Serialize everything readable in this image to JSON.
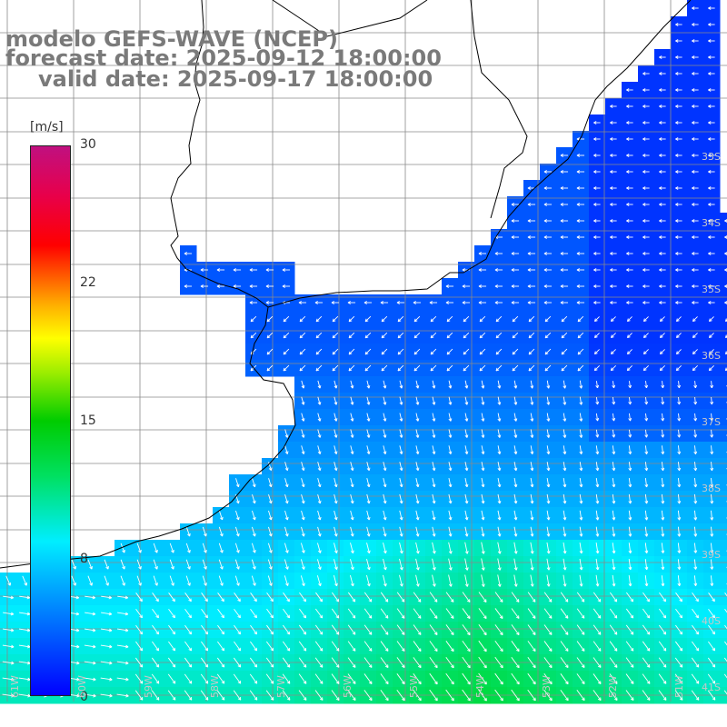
{
  "title": {
    "model": "modelo GEFS-WAVE (NCEP)",
    "forecast": "forecast date: 2025-09-12 18:00:00",
    "valid": "valid date: 2025-09-17 18:00:00"
  },
  "colorbar": {
    "unit": "[m/s]",
    "ticks": [
      "30",
      "22",
      "15",
      "8",
      "0"
    ],
    "tick_values": [
      30,
      22,
      15,
      8,
      0
    ],
    "min": 0,
    "max": 30,
    "colors": [
      "#0000ff",
      "#0090ff",
      "#00eeff",
      "#00e060",
      "#00cc00",
      "#a0ee00",
      "#ffff00",
      "#ffb000",
      "#ff6000",
      "#ff0000",
      "#e8004a",
      "#c01080"
    ]
  },
  "lat_labels": [
    "33S",
    "34S",
    "35S",
    "36S",
    "37S",
    "38S",
    "39S",
    "40S",
    "41S"
  ],
  "lon_labels": [
    "61W",
    "60W",
    "59W",
    "58W",
    "57W",
    "56W",
    "55W",
    "54W",
    "53W",
    "52W",
    "51W"
  ],
  "colors": {
    "land": "#ffffff",
    "grid": "#8a8a8a",
    "coast": "#000000",
    "arrow": "#ffffff",
    "title": "#7a7a7a"
  }
}
